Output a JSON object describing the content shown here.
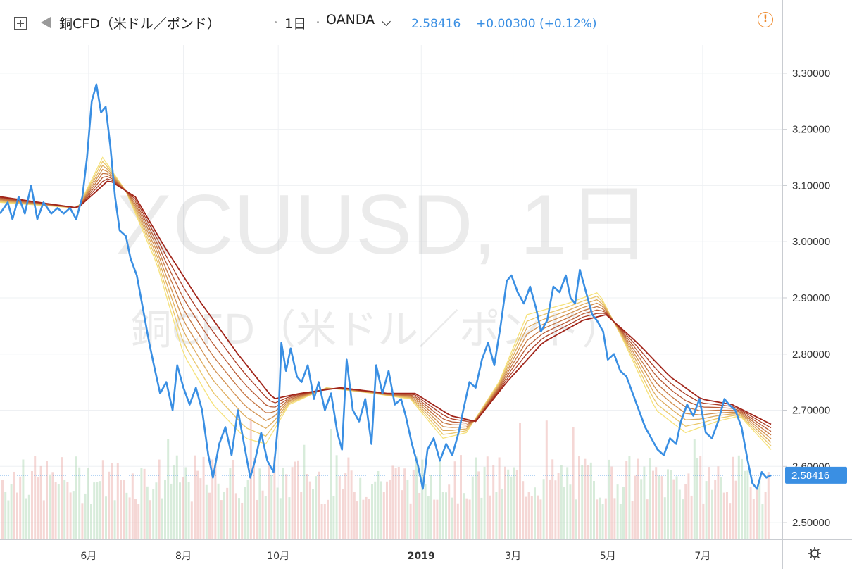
{
  "header": {
    "title": "銅CFD（米ドル／ポンド）",
    "interval": "1日",
    "source": "OANDA",
    "price": "2.58416",
    "change": "+0.00300 (+0.12%)"
  },
  "watermark": {
    "line1": "XCUUSD, 1日",
    "line2": "銅CFD（米ドル／ポンド）"
  },
  "icons": {
    "expand": "expand-icon",
    "flag": "flag-icon",
    "dropdown": "chevron-down-icon",
    "alert": "alert-icon",
    "settings": "gear-icon"
  },
  "colors": {
    "price_line": "#3a8fe3",
    "ribbon_fast": "#f6e27a",
    "ribbon_slow": "#a1251a",
    "volume_up": "#a8d5b0",
    "volume_down": "#e8a7a2",
    "alert": "#ee8a2e"
  },
  "chart_data": {
    "type": "line",
    "y_axis": {
      "side": "right",
      "ticks": [
        "3.30000",
        "3.20000",
        "3.10000",
        "3.00000",
        "2.90000",
        "2.80000",
        "2.70000",
        "2.60000",
        "2.50000"
      ],
      "tick_values": [
        3.3,
        3.2,
        3.1,
        3.0,
        2.9,
        2.8,
        2.7,
        2.6,
        2.5
      ],
      "ylim": [
        2.47,
        3.35
      ]
    },
    "x_axis": {
      "ticks": [
        {
          "label": "6月",
          "date": "2018-06-01",
          "bold": false
        },
        {
          "label": "8月",
          "date": "2018-08-01",
          "bold": false
        },
        {
          "label": "10月",
          "date": "2018-10-01",
          "bold": false
        },
        {
          "label": "2019",
          "date": "2019-01-01",
          "bold": true
        },
        {
          "label": "3月",
          "date": "2019-03-01",
          "bold": false
        },
        {
          "label": "5月",
          "date": "2019-05-01",
          "bold": false
        },
        {
          "label": "7月",
          "date": "2019-07-01",
          "bold": false
        }
      ],
      "xlim": [
        "2018-04-05",
        "2019-08-14"
      ]
    },
    "last_price": {
      "value": 2.58416,
      "label": "2.58416"
    },
    "series": [
      {
        "role": "price",
        "color": "#3a8fe3",
        "points": [
          [
            "2018-04-05",
            3.05
          ],
          [
            "2018-04-10",
            3.07
          ],
          [
            "2018-04-13",
            3.04
          ],
          [
            "2018-04-17",
            3.08
          ],
          [
            "2018-04-21",
            3.05
          ],
          [
            "2018-04-25",
            3.1
          ],
          [
            "2018-04-29",
            3.04
          ],
          [
            "2018-05-03",
            3.07
          ],
          [
            "2018-05-08",
            3.05
          ],
          [
            "2018-05-12",
            3.06
          ],
          [
            "2018-05-16",
            3.05
          ],
          [
            "2018-05-20",
            3.06
          ],
          [
            "2018-05-24",
            3.04
          ],
          [
            "2018-05-28",
            3.08
          ],
          [
            "2018-05-31",
            3.15
          ],
          [
            "2018-06-03",
            3.25
          ],
          [
            "2018-06-06",
            3.28
          ],
          [
            "2018-06-09",
            3.23
          ],
          [
            "2018-06-12",
            3.24
          ],
          [
            "2018-06-15",
            3.17
          ],
          [
            "2018-06-18",
            3.08
          ],
          [
            "2018-06-21",
            3.02
          ],
          [
            "2018-06-25",
            3.01
          ],
          [
            "2018-06-28",
            2.97
          ],
          [
            "2018-07-02",
            2.94
          ],
          [
            "2018-07-06",
            2.88
          ],
          [
            "2018-07-10",
            2.82
          ],
          [
            "2018-07-13",
            2.78
          ],
          [
            "2018-07-17",
            2.73
          ],
          [
            "2018-07-21",
            2.75
          ],
          [
            "2018-07-25",
            2.7
          ],
          [
            "2018-07-28",
            2.78
          ],
          [
            "2018-08-01",
            2.74
          ],
          [
            "2018-08-05",
            2.71
          ],
          [
            "2018-08-09",
            2.74
          ],
          [
            "2018-08-13",
            2.7
          ],
          [
            "2018-08-17",
            2.62
          ],
          [
            "2018-08-20",
            2.58
          ],
          [
            "2018-08-24",
            2.64
          ],
          [
            "2018-08-28",
            2.67
          ],
          [
            "2018-09-01",
            2.62
          ],
          [
            "2018-09-05",
            2.7
          ],
          [
            "2018-09-09",
            2.64
          ],
          [
            "2018-09-13",
            2.58
          ],
          [
            "2018-09-16",
            2.61
          ],
          [
            "2018-09-20",
            2.66
          ],
          [
            "2018-09-24",
            2.61
          ],
          [
            "2018-09-28",
            2.59
          ],
          [
            "2018-10-01",
            2.68
          ],
          [
            "2018-10-03",
            2.82
          ],
          [
            "2018-10-06",
            2.77
          ],
          [
            "2018-10-09",
            2.81
          ],
          [
            "2018-10-13",
            2.76
          ],
          [
            "2018-10-16",
            2.75
          ],
          [
            "2018-10-20",
            2.78
          ],
          [
            "2018-10-24",
            2.72
          ],
          [
            "2018-10-27",
            2.75
          ],
          [
            "2018-10-31",
            2.7
          ],
          [
            "2018-11-04",
            2.73
          ],
          [
            "2018-11-08",
            2.66
          ],
          [
            "2018-11-11",
            2.63
          ],
          [
            "2018-11-14",
            2.79
          ],
          [
            "2018-11-18",
            2.7
          ],
          [
            "2018-11-22",
            2.68
          ],
          [
            "2018-11-26",
            2.72
          ],
          [
            "2018-11-30",
            2.64
          ],
          [
            "2018-12-03",
            2.78
          ],
          [
            "2018-12-07",
            2.73
          ],
          [
            "2018-12-11",
            2.77
          ],
          [
            "2018-12-15",
            2.71
          ],
          [
            "2018-12-19",
            2.72
          ],
          [
            "2018-12-22",
            2.69
          ],
          [
            "2018-12-26",
            2.64
          ],
          [
            "2018-12-30",
            2.6
          ],
          [
            "2019-01-02",
            2.56
          ],
          [
            "2019-01-05",
            2.63
          ],
          [
            "2019-01-09",
            2.65
          ],
          [
            "2019-01-13",
            2.61
          ],
          [
            "2019-01-17",
            2.64
          ],
          [
            "2019-01-21",
            2.62
          ],
          [
            "2019-01-25",
            2.66
          ],
          [
            "2019-01-28",
            2.7
          ],
          [
            "2019-02-01",
            2.75
          ],
          [
            "2019-02-05",
            2.74
          ],
          [
            "2019-02-09",
            2.79
          ],
          [
            "2019-02-13",
            2.82
          ],
          [
            "2019-02-17",
            2.78
          ],
          [
            "2019-02-21",
            2.85
          ],
          [
            "2019-02-25",
            2.93
          ],
          [
            "2019-02-28",
            2.94
          ],
          [
            "2019-03-04",
            2.91
          ],
          [
            "2019-03-08",
            2.89
          ],
          [
            "2019-03-12",
            2.92
          ],
          [
            "2019-03-16",
            2.88
          ],
          [
            "2019-03-19",
            2.84
          ],
          [
            "2019-03-23",
            2.86
          ],
          [
            "2019-03-27",
            2.92
          ],
          [
            "2019-03-31",
            2.91
          ],
          [
            "2019-04-04",
            2.94
          ],
          [
            "2019-04-07",
            2.9
          ],
          [
            "2019-04-10",
            2.89
          ],
          [
            "2019-04-13",
            2.95
          ],
          [
            "2019-04-17",
            2.91
          ],
          [
            "2019-04-21",
            2.87
          ],
          [
            "2019-04-24",
            2.86
          ],
          [
            "2019-04-28",
            2.84
          ],
          [
            "2019-05-01",
            2.79
          ],
          [
            "2019-05-05",
            2.8
          ],
          [
            "2019-05-09",
            2.77
          ],
          [
            "2019-05-13",
            2.76
          ],
          [
            "2019-05-17",
            2.73
          ],
          [
            "2019-05-21",
            2.7
          ],
          [
            "2019-05-25",
            2.67
          ],
          [
            "2019-05-29",
            2.65
          ],
          [
            "2019-06-02",
            2.63
          ],
          [
            "2019-06-06",
            2.62
          ],
          [
            "2019-06-10",
            2.65
          ],
          [
            "2019-06-14",
            2.64
          ],
          [
            "2019-06-17",
            2.68
          ],
          [
            "2019-06-21",
            2.71
          ],
          [
            "2019-06-25",
            2.69
          ],
          [
            "2019-06-29",
            2.72
          ],
          [
            "2019-07-03",
            2.66
          ],
          [
            "2019-07-07",
            2.65
          ],
          [
            "2019-07-11",
            2.68
          ],
          [
            "2019-07-15",
            2.72
          ],
          [
            "2019-07-18",
            2.71
          ],
          [
            "2019-07-22",
            2.7
          ],
          [
            "2019-07-26",
            2.67
          ],
          [
            "2019-07-30",
            2.61
          ],
          [
            "2019-08-02",
            2.57
          ],
          [
            "2019-08-05",
            2.56
          ],
          [
            "2019-08-08",
            2.59
          ],
          [
            "2019-08-11",
            2.58
          ],
          [
            "2019-08-14",
            2.58416
          ]
        ]
      },
      {
        "role": "ma-ribbon-fast",
        "color": "#f6e27a",
        "points": [
          [
            "2018-04-05",
            3.07
          ],
          [
            "2018-05-25",
            3.06
          ],
          [
            "2018-06-10",
            3.15
          ],
          [
            "2018-06-25",
            3.09
          ],
          [
            "2018-07-15",
            2.96
          ],
          [
            "2018-08-01",
            2.8
          ],
          [
            "2018-08-20",
            2.71
          ],
          [
            "2018-09-10",
            2.65
          ],
          [
            "2018-09-23",
            2.64
          ],
          [
            "2018-10-08",
            2.71
          ],
          [
            "2018-11-01",
            2.74
          ],
          [
            "2018-12-01",
            2.73
          ],
          [
            "2018-12-25",
            2.72
          ],
          [
            "2019-01-15",
            2.65
          ],
          [
            "2019-01-30",
            2.66
          ],
          [
            "2019-02-20",
            2.75
          ],
          [
            "2019-03-10",
            2.87
          ],
          [
            "2019-04-05",
            2.89
          ],
          [
            "2019-04-25",
            2.91
          ],
          [
            "2019-05-10",
            2.83
          ],
          [
            "2019-06-01",
            2.7
          ],
          [
            "2019-06-20",
            2.66
          ],
          [
            "2019-07-10",
            2.68
          ],
          [
            "2019-07-25",
            2.69
          ],
          [
            "2019-08-14",
            2.63
          ]
        ]
      },
      {
        "role": "ma-ribbon-slow",
        "color": "#a1251a",
        "points": [
          [
            "2018-04-05",
            3.08
          ],
          [
            "2018-05-25",
            3.06
          ],
          [
            "2018-06-14",
            3.11
          ],
          [
            "2018-07-01",
            3.08
          ],
          [
            "2018-07-20",
            2.99
          ],
          [
            "2018-08-10",
            2.9
          ],
          [
            "2018-09-05",
            2.8
          ],
          [
            "2018-09-28",
            2.72
          ],
          [
            "2018-10-15",
            2.73
          ],
          [
            "2018-11-10",
            2.74
          ],
          [
            "2018-12-10",
            2.73
          ],
          [
            "2018-12-28",
            2.73
          ],
          [
            "2019-01-20",
            2.69
          ],
          [
            "2019-02-05",
            2.68
          ],
          [
            "2019-02-25",
            2.75
          ],
          [
            "2019-03-20",
            2.82
          ],
          [
            "2019-04-15",
            2.86
          ],
          [
            "2019-04-30",
            2.87
          ],
          [
            "2019-05-20",
            2.82
          ],
          [
            "2019-06-10",
            2.76
          ],
          [
            "2019-06-30",
            2.72
          ],
          [
            "2019-07-20",
            2.71
          ],
          [
            "2019-08-14",
            2.675
          ]
        ]
      }
    ]
  }
}
